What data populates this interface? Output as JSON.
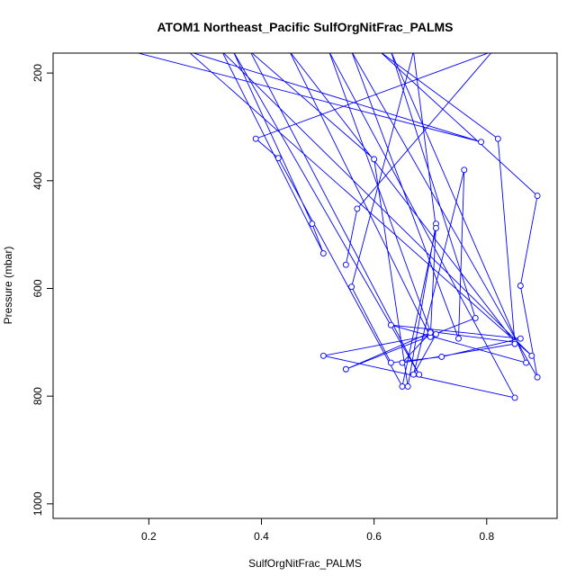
{
  "chart_data": {
    "type": "line",
    "title": "ATOM1 Northeast_Pacific SulfOrgNitFrac_PALMS",
    "xlabel": "SulfOrgNitFrac_PALMS",
    "ylabel": "Pressure (mbar)",
    "xlim": [
      0.03,
      0.925
    ],
    "ylim": [
      1027,
      163
    ],
    "y_reversed": true,
    "xticks": [
      0.2,
      0.4,
      0.6,
      0.8
    ],
    "yticks": [
      200,
      400,
      600,
      800,
      1000
    ],
    "grid": false,
    "legend": "none",
    "marker": "open-circle",
    "color": "#0000ff",
    "series": [
      {
        "points": [
          [
            0.17,
            160
          ],
          [
            0.79,
            328
          ],
          [
            0.27,
            160
          ],
          [
            0.88,
            725
          ],
          [
            0.33,
            160
          ],
          [
            0.51,
            535
          ],
          [
            0.49,
            480
          ],
          [
            0.35,
            160
          ],
          [
            0.68,
            760
          ],
          [
            0.38,
            160
          ],
          [
            0.6,
            360
          ],
          [
            0.66,
            782
          ],
          [
            0.71,
            480
          ],
          [
            0.7,
            690
          ],
          [
            0.45,
            160
          ],
          [
            0.85,
            700
          ],
          [
            0.7,
            680
          ],
          [
            0.52,
            160
          ],
          [
            0.85,
            803
          ],
          [
            0.51,
            725
          ],
          [
            0.71,
            685
          ],
          [
            0.67,
            760
          ],
          [
            0.76,
            380
          ],
          [
            0.75,
            693
          ],
          [
            0.56,
            160
          ],
          [
            0.89,
            765
          ],
          [
            0.86,
            595
          ],
          [
            0.89,
            428
          ],
          [
            0.61,
            160
          ],
          [
            0.82,
            322
          ],
          [
            0.85,
            703
          ],
          [
            0.65,
            738
          ],
          [
            0.7,
            682
          ],
          [
            0.55,
            750
          ],
          [
            0.78,
            655
          ],
          [
            0.63,
            160
          ],
          [
            0.87,
            738
          ],
          [
            0.63,
            668
          ],
          [
            0.86,
            693
          ],
          [
            0.72,
            727
          ],
          [
            0.63,
            738
          ],
          [
            0.56,
            597
          ],
          [
            0.67,
            160
          ],
          [
            0.71,
            488
          ],
          [
            0.65,
            782
          ],
          [
            0.43,
            358
          ],
          [
            0.39,
            322
          ],
          [
            0.81,
            160
          ],
          [
            0.57,
            452
          ],
          [
            0.55,
            556
          ]
        ]
      }
    ]
  }
}
